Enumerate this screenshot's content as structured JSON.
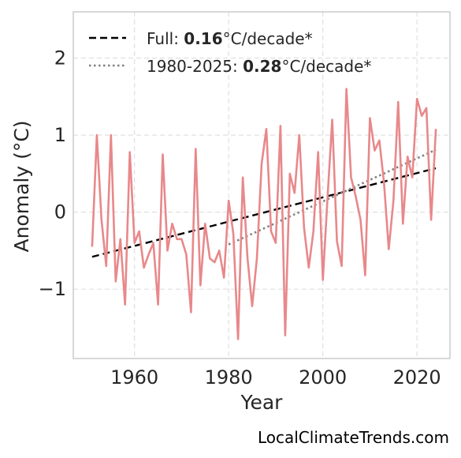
{
  "chart_data": {
    "type": "line",
    "xlabel": "Year",
    "ylabel": "Anomaly (°C)",
    "xlim": [
      1947,
      2027
    ],
    "ylim": [
      -1.9,
      2.6
    ],
    "x_ticks": [
      1960,
      1980,
      2000,
      2020
    ],
    "y_ticks": [
      2,
      1,
      0,
      -1
    ],
    "y_tick_labels": [
      "2",
      "1",
      "0",
      "−1"
    ],
    "grid": true,
    "legend_position": "top-left",
    "colors": {
      "anomaly": "#e8888a",
      "full_trend": "#000000",
      "recent_trend": "#808080",
      "grid": "#e0e0e0",
      "frame": "#cccccc"
    },
    "series": [
      {
        "x": [
          1951,
          1952,
          1953,
          1954,
          1955,
          1956,
          1957,
          1958,
          1959,
          1960,
          1961,
          1962,
          1963,
          1964,
          1965,
          1966,
          1967,
          1968,
          1969,
          1970,
          1971,
          1972,
          1973,
          1974,
          1975,
          1976,
          1977,
          1978,
          1979,
          1980,
          1981,
          1982,
          1983,
          1984,
          1985,
          1986,
          1987,
          1988,
          1989,
          1990,
          1991,
          1992,
          1993,
          1994,
          1995,
          1996,
          1997,
          1998,
          1999,
          2000,
          2001,
          2002,
          2003,
          2004,
          2005,
          2006,
          2007,
          2008,
          2009,
          2010,
          2011,
          2012,
          2013,
          2014,
          2015,
          2016,
          2017,
          2018,
          2019,
          2020,
          2021,
          2022,
          2023,
          2024
        ],
        "y": [
          -0.45,
          1.0,
          -0.1,
          -0.7,
          1.0,
          -0.9,
          -0.35,
          -1.2,
          0.78,
          -0.4,
          -0.25,
          -0.72,
          -0.55,
          -0.4,
          -1.2,
          0.75,
          -0.5,
          -0.15,
          -0.35,
          -0.35,
          -0.55,
          -1.3,
          0.82,
          -0.95,
          -0.15,
          -0.6,
          -0.65,
          -0.5,
          -0.85,
          0.15,
          -0.28,
          -1.65,
          0.45,
          -0.6,
          -1.22,
          -0.6,
          0.63,
          1.08,
          -0.25,
          -0.4,
          1.12,
          -1.6,
          0.5,
          0.25,
          1.0,
          -0.2,
          -0.72,
          -0.25,
          0.78,
          -0.88,
          0.2,
          1.2,
          -0.38,
          -0.7,
          1.6,
          0.45,
          0.2,
          -0.1,
          -0.82,
          1.22,
          0.8,
          0.93,
          0.38,
          -0.48,
          0.15,
          1.43,
          -0.15,
          0.72,
          0.45,
          1.47,
          1.25,
          1.35,
          -0.1,
          1.08
        ]
      }
    ],
    "trend_full": {
      "x": [
        1951,
        2024
      ],
      "y": [
        -0.58,
        0.57
      ]
    },
    "trend_recent": {
      "x": [
        1980,
        2024
      ],
      "y": [
        -0.42,
        0.81
      ]
    },
    "legend": [
      {
        "prefix": "Full: ",
        "value": "0.16",
        "suffix": "°C/decade*",
        "style": "dashed"
      },
      {
        "prefix": "1980-2025: ",
        "value": "0.28",
        "suffix": "°C/decade*",
        "style": "dotted"
      }
    ]
  },
  "credit": "LocalClimateTrends.com"
}
